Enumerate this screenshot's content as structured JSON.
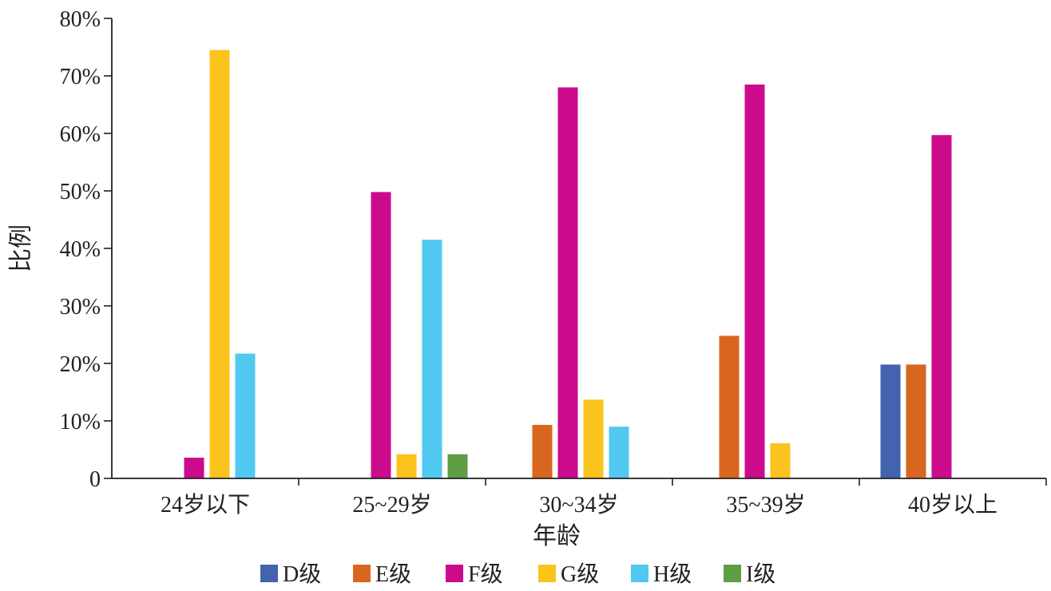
{
  "chart_data": {
    "type": "bar",
    "title": "",
    "xlabel": "年龄",
    "ylabel": "比例",
    "ylim": [
      0,
      80
    ],
    "yticks": [
      0,
      10,
      20,
      30,
      40,
      50,
      60,
      70,
      80
    ],
    "ytick_labels": [
      "0",
      "10%",
      "20%",
      "30%",
      "40%",
      "50%",
      "60%",
      "70%",
      "80%"
    ],
    "categories": [
      "24岁以下",
      "25~29岁",
      "30~34岁",
      "35~39岁",
      "40岁以上"
    ],
    "series": [
      {
        "name": "D级",
        "color": "#4363ae",
        "values": [
          0,
          0,
          0,
          0,
          19.8
        ]
      },
      {
        "name": "E级",
        "color": "#d9661f",
        "values": [
          0,
          0,
          9.3,
          24.8,
          19.8
        ]
      },
      {
        "name": "F级",
        "color": "#cc0a8c",
        "values": [
          3.6,
          49.8,
          68.0,
          68.5,
          59.7
        ]
      },
      {
        "name": "G级",
        "color": "#fac31e",
        "values": [
          74.5,
          4.2,
          13.7,
          6.1,
          0
        ]
      },
      {
        "name": "H级",
        "color": "#50c8f0",
        "values": [
          21.7,
          41.5,
          9.0,
          0,
          0
        ]
      },
      {
        "name": "I级",
        "color": "#5e9e44",
        "values": [
          0,
          4.2,
          0,
          0,
          0
        ]
      }
    ],
    "grid": false,
    "legend_position": "bottom"
  }
}
